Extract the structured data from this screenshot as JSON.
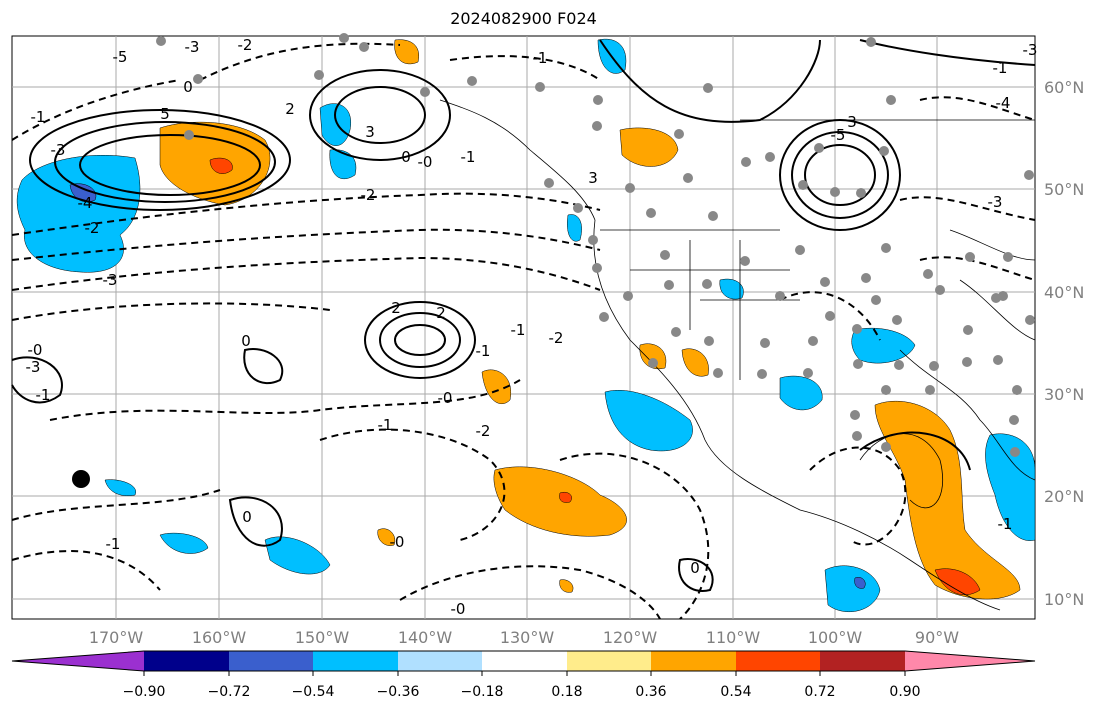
{
  "title": "2024082900 F024",
  "map": {
    "lat_labels": [
      "60°N",
      "50°N",
      "40°N",
      "30°N",
      "20°N",
      "10°N"
    ],
    "lon_labels": [
      "170°W",
      "160°W",
      "150°W",
      "140°W",
      "130°W",
      "120°W",
      "110°W",
      "100°W",
      "90°W"
    ],
    "contour_labels": [
      "-5",
      "-3",
      "-4",
      "-2",
      "-3",
      "-1",
      "-2",
      "-3",
      "0",
      "5",
      "3",
      "-1",
      "-2",
      "3",
      "0",
      "-0",
      "2",
      "3",
      "-1",
      "-3",
      "-4",
      "-5",
      "-3",
      "-1",
      "2",
      "2",
      "-1",
      "-2",
      "-1",
      "-0",
      "0",
      "-1",
      "-2",
      "-3",
      "-0",
      "-1",
      "0",
      "-0",
      "-1",
      "0",
      "-1",
      "-0"
    ],
    "point_marker": "black-dot"
  },
  "colorbar": {
    "tick_labels": [
      "−0.90",
      "−0.72",
      "−0.54",
      "−0.36",
      "−0.18",
      "0.18",
      "0.36",
      "0.54",
      "0.72",
      "0.90"
    ],
    "colors": [
      "#9b30d0",
      "#00008b",
      "#3a5fcd",
      "#00bfff",
      "#b0e0ff",
      "#ffffff",
      "#ffec8b",
      "#ffa500",
      "#ff4500",
      "#b22222",
      "#ff88aa"
    ]
  }
}
